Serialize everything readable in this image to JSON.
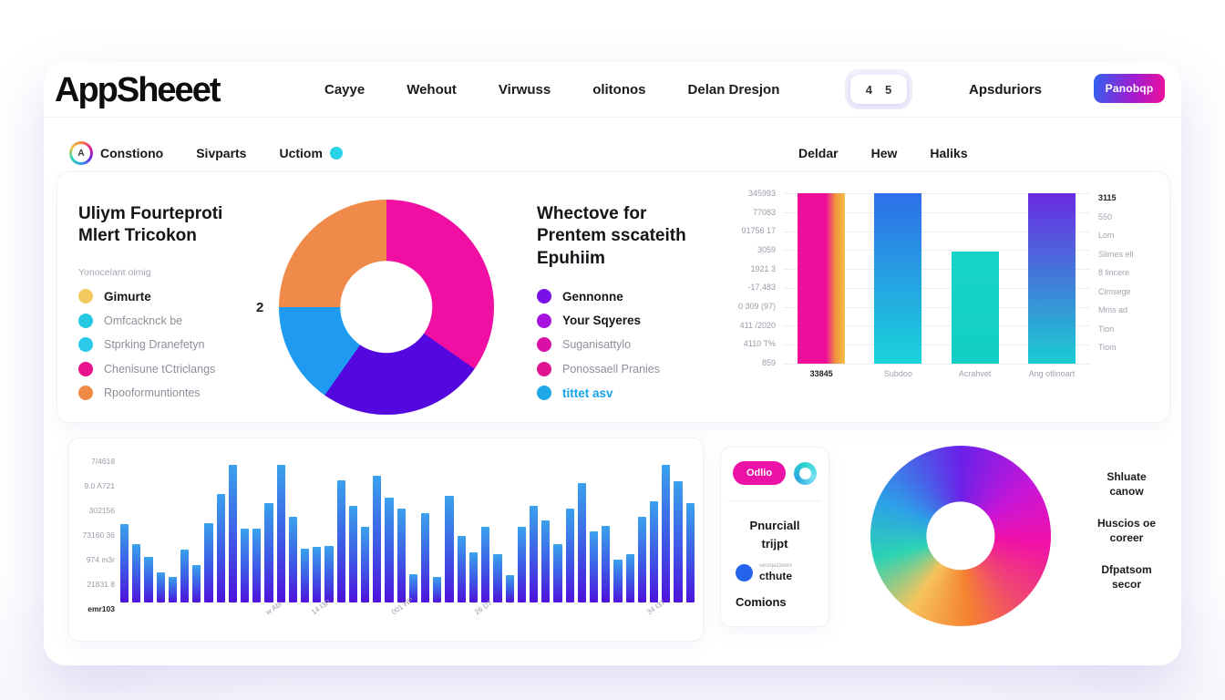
{
  "header": {
    "logo": "AppSheeet",
    "nav": [
      "Cayye",
      "Wehout",
      "Virwuss",
      "olitonos",
      "Delan Dresjon"
    ],
    "counter": [
      "4",
      "5"
    ],
    "account_label": "Apsduriors",
    "cta_label": "Panobqp",
    "cta_gradient": [
      "#2E63F0",
      "#A21BD0",
      "#F01098"
    ]
  },
  "subheader": {
    "logo_letter": "A",
    "left_items": [
      "Constiono",
      "Sivparts",
      "Uctiom"
    ],
    "status_dot_color": "#29D3E8",
    "right_items": [
      "Deldar",
      "Hew",
      "Haliks"
    ]
  },
  "overview": {
    "left": {
      "title": "Uliym Fourteproti\nMlert Tricokon",
      "subtitle": "Yonocelant oimig",
      "legend": [
        {
          "label": "Gimurte",
          "color": "#F2C95F",
          "bold": true
        },
        {
          "label": "Omfcacknck be",
          "color": "#25C8E3"
        },
        {
          "label": "Stprking Dranefetyn",
          "color": "#2BC9EA"
        },
        {
          "label": "Chenisune tCtriclangs",
          "color": "#E9128F"
        },
        {
          "label": "Rpooformuntiontes",
          "color": "#F08A47"
        }
      ],
      "pie_value": "2"
    },
    "middle": {
      "title": "Whectove for\nPrentem sscateith\nEpuhiim",
      "legend": [
        {
          "label": "Gennonne",
          "color": "#7A10E8",
          "bold": true
        },
        {
          "label": "Your Sqyeres",
          "color": "#A512E0",
          "bold": true
        },
        {
          "label": "Suganisattylo",
          "color": "#D810A8"
        },
        {
          "label": "Ponossaell Pranies",
          "color": "#E01490"
        },
        {
          "label": "tittet asv",
          "color": "#1FA8E8",
          "bold": true,
          "label_color": "#17A3E8"
        }
      ]
    }
  },
  "stat_card": {
    "button_label": "Odlio",
    "button_color": "#EC12A8",
    "ring_colors": [
      "#2FD6D0",
      "#79E0F2",
      "#27A6E0"
    ],
    "title": "Pnurciall\ntrijpt",
    "stat_small": "seroqazzeers",
    "stat_label": "cthute",
    "stat_dot_color": "#2563EB",
    "footer_label": "Comions"
  },
  "chart_data": [
    {
      "type": "pie",
      "name": "overview-donut",
      "segments": [
        {
          "color": "#F00FA2",
          "start": 0,
          "end": 125,
          "pct": 34.7
        },
        {
          "color": "#5408DF",
          "start": 125,
          "end": 215,
          "pct": 25.0
        },
        {
          "color": "#1E9BF0",
          "start": 215,
          "end": 270,
          "pct": 15.3
        },
        {
          "color": "#F08A4A",
          "start": 270,
          "end": 360,
          "pct": 25.0
        }
      ],
      "hole_pct": 43,
      "annotation": "2"
    },
    {
      "type": "bar",
      "name": "category-bars",
      "categories": [
        "33845",
        "Subdoo",
        "Acrahvet",
        "Ang otlinoart"
      ],
      "values": [
        100,
        100,
        66,
        100
      ],
      "bar_gradients": [
        {
          "dir": "90deg",
          "stops": [
            "#EF0D9C 0%",
            "#EF0D9C 60%",
            "#F2953B 80%",
            "#F5BE4B 100%"
          ]
        },
        {
          "dir": "180deg",
          "stops": [
            "#2F6FE9 0%",
            "#1BD3DB 100%"
          ]
        },
        {
          "dir": "180deg",
          "stops": [
            "#17D4CB 0%",
            "#12CEC4 100%"
          ]
        },
        {
          "dir": "180deg",
          "stops": [
            "#6A2AE2 0%",
            "#1ACDD2 100%"
          ]
        }
      ],
      "y_tick_labels": [
        "345993",
        "77083",
        "91756 17",
        "3059",
        "1921 3",
        "-17,483",
        "0 309 (97)",
        "411 /2020",
        "4110 T%",
        "859"
      ],
      "side_labels": [
        "3115",
        "550",
        "Lom",
        "Slimes ell",
        "8 lincere",
        "Cimsege",
        "Mms ad",
        "Tion",
        "Tiom"
      ],
      "grid": true
    },
    {
      "type": "bar",
      "name": "volume-bars",
      "values": [
        55,
        41,
        32,
        21,
        18,
        37,
        26,
        56,
        76,
        97,
        52,
        52,
        70,
        97,
        60,
        38,
        39,
        40,
        86,
        68,
        53,
        89,
        74,
        66,
        20,
        63,
        18,
        75,
        47,
        35,
        53,
        34,
        19,
        53,
        68,
        58,
        41,
        66,
        84,
        50,
        54,
        30,
        34,
        60,
        71,
        97,
        85,
        70
      ],
      "bar_gradient": {
        "dir": "180deg",
        "stops": [
          "#3AA2EC 0%",
          "#3E58E6 55%",
          "#4E12DC 100%"
        ]
      },
      "y_tick_labels": [
        "7/4618",
        "9.0 A721",
        "302156",
        "73160 36",
        "974 m3r",
        "21831 8"
      ],
      "y_footer": "emr103",
      "x_ticks": [
        {
          "label": "w Abr",
          "pos": 0.25
        },
        {
          "label": "14 I3P",
          "pos": 0.33
        },
        {
          "label": "001 HP",
          "pos": 0.47
        },
        {
          "label": "26 D7",
          "pos": 0.615
        },
        {
          "label": "34 I37",
          "pos": 0.915
        }
      ]
    },
    {
      "type": "donut",
      "name": "spectrum-donut",
      "conic_stops": [
        [
          "0deg",
          "#6B21E8"
        ],
        [
          "55deg",
          "#C816D8"
        ],
        [
          "95deg",
          "#F011A8"
        ],
        [
          "140deg",
          "#F04A6E"
        ],
        [
          "175deg",
          "#F5832F"
        ],
        [
          "215deg",
          "#F5C35C"
        ],
        [
          "255deg",
          "#2BD3B4"
        ],
        [
          "295deg",
          "#2D9FE8"
        ],
        [
          "330deg",
          "#4C5BE8"
        ],
        [
          "360deg",
          "#6B21E8"
        ]
      ],
      "hole_pct": 38,
      "labels": [
        "Shluate\ncanow",
        "Huscios oe\ncoreer",
        "Dfpatsom\nsecor"
      ]
    }
  ]
}
